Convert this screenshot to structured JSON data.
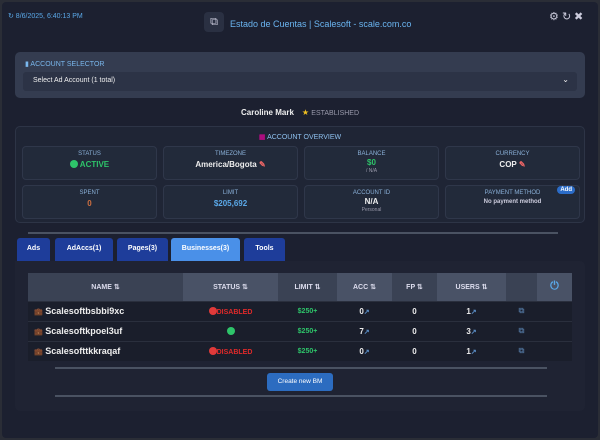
{
  "header": {
    "timestamp": "↻ 8/6/2025, 6:40:13 PM",
    "title": "Estado de Cuentas | Scalesoft - scale.com.co",
    "settings_icon": "gear-icon",
    "refresh_icon": "refresh-icon",
    "close_icon": "close-icon"
  },
  "account_selector": {
    "label": "ACCOUNT SELECTOR",
    "value": "Select Ad Account (1 total)"
  },
  "profile": {
    "name": "Caroline Mark",
    "badge": "ESTABLISHED"
  },
  "overview": {
    "title": "ACCOUNT OVERVIEW",
    "status": {
      "label": "STATUS",
      "value": "ACTIVE"
    },
    "timezone": {
      "label": "TIMEZONE",
      "value": "America/Bogota"
    },
    "balance": {
      "label": "BALANCE",
      "value": "$0",
      "sub": "/ N/A"
    },
    "currency": {
      "label": "CURRENCY",
      "value": "COP"
    },
    "spent": {
      "label": "SPENT",
      "value": "0"
    },
    "limit": {
      "label": "LIMIT",
      "value": "$205,692"
    },
    "account_id": {
      "label": "ACCOUNT ID",
      "value": "N/A",
      "sub": "Personal"
    },
    "payment": {
      "label": "PAYMENT METHOD",
      "value": "No payment method",
      "add": "Add"
    }
  },
  "tabs": [
    "Ads",
    "AdAccs(1)",
    "Pages(3)",
    "Businesses(3)",
    "Tools"
  ],
  "active_tab": "Businesses(3)",
  "table": {
    "headers": [
      "NAME ⇅",
      "STATUS ⇅",
      "LIMIT ⇅",
      "ACC ⇅",
      "FP ⇅",
      "USERS ⇅"
    ],
    "rows": [
      {
        "name": "Scalesoftbsbbi9xc",
        "status": "DISABLED",
        "limit": "$250+",
        "acc": "0",
        "fp": "0",
        "users": "1"
      },
      {
        "name": "Scalesoftkpoel3uf",
        "status": "",
        "limit": "$250+",
        "acc": "7",
        "fp": "0",
        "users": "3"
      },
      {
        "name": "Scalesofttkkraqaf",
        "status": "DISABLED",
        "limit": "$250+",
        "acc": "0",
        "fp": "0",
        "users": "1"
      }
    ]
  },
  "create_button": "Create new BM",
  "colors": {
    "accent": "#4a90e8",
    "disabled": "#e02a2a",
    "active": "#2ec46a"
  }
}
